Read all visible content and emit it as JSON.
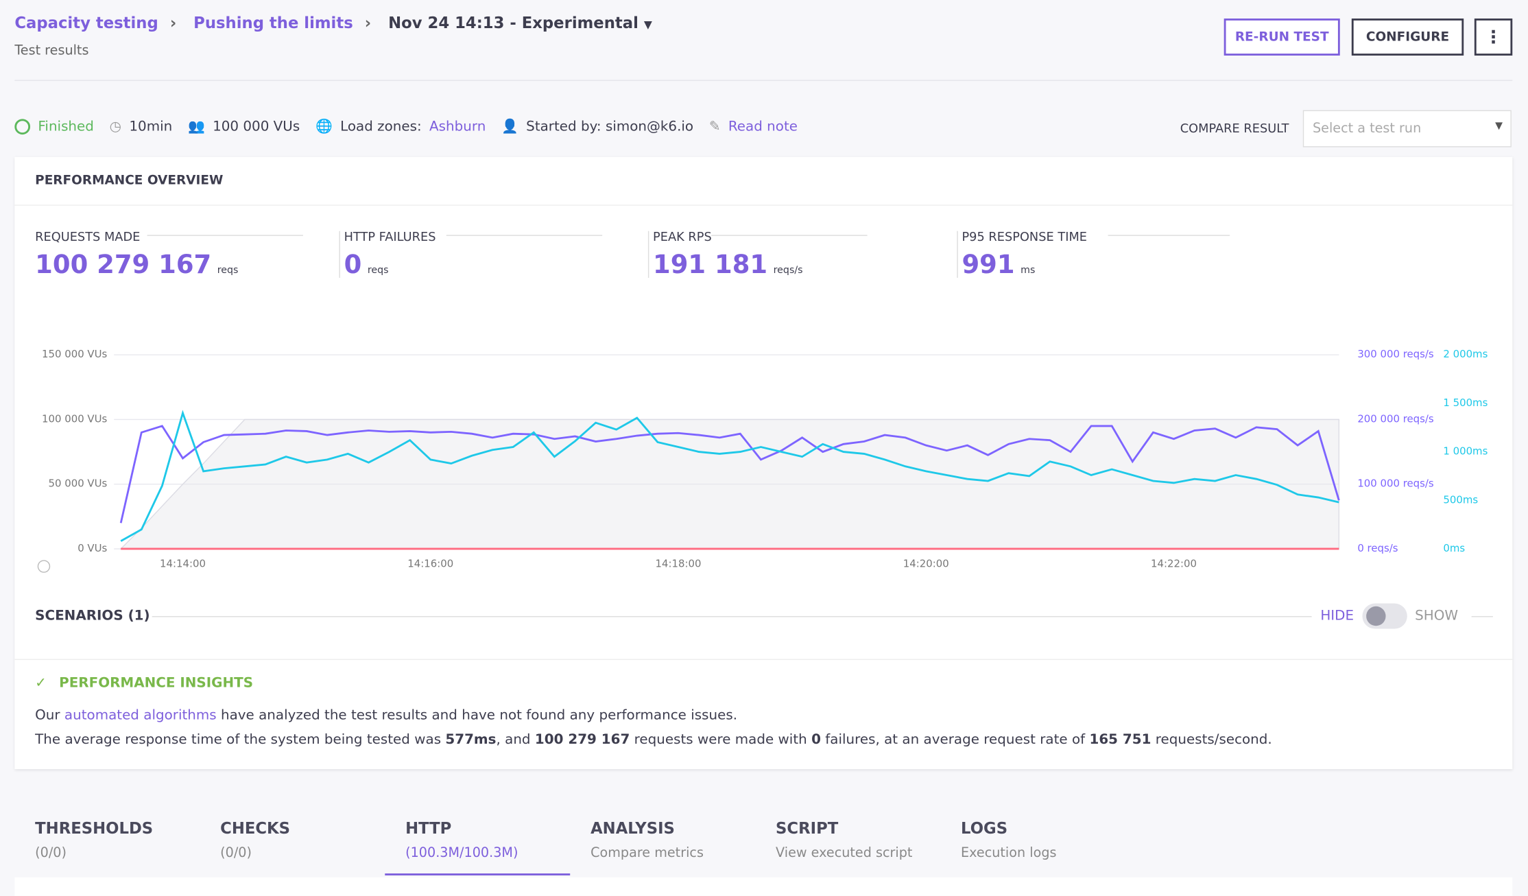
{
  "header": {
    "breadcrumb": [
      "Capacity testing",
      "Pushing the limits",
      "Nov 24 14:13 - Experimental"
    ],
    "subtitle": "Test results",
    "buttons": [
      "RE-RUN TEST",
      "CONFIGURE"
    ]
  },
  "status": {
    "state": "Finished",
    "duration": "10min",
    "vus": "100 000 VUs",
    "zones_label": "Load zones:",
    "zone": "Ashburn",
    "started": "Started by: simon@k6.io",
    "note": "Read note",
    "compare_label": "COMPARE RESULT",
    "compare_placeholder": "Select a test run"
  },
  "overview": {
    "title": "PERFORMANCE OVERVIEW",
    "stats": [
      {
        "label": "REQUESTS MADE",
        "value": "100 279 167",
        "unit": "reqs"
      },
      {
        "label": "HTTP FAILURES",
        "value": "0",
        "unit": "reqs"
      },
      {
        "label": "PEAK RPS",
        "value": "191 181",
        "unit": "reqs/s"
      },
      {
        "label": "P95 RESPONSE TIME",
        "value": "991",
        "unit": "ms"
      }
    ]
  },
  "chart_data": {
    "type": "line",
    "x": [
      "14:13:30",
      "14:13:40",
      "14:13:50",
      "14:14:00",
      "14:14:10",
      "14:14:20",
      "14:14:30",
      "14:14:40",
      "14:14:50",
      "14:15:00",
      "14:15:10",
      "14:15:20",
      "14:15:30",
      "14:15:40",
      "14:15:50",
      "14:16:00",
      "14:16:10",
      "14:16:20",
      "14:16:30",
      "14:16:40",
      "14:16:50",
      "14:17:00",
      "14:17:10",
      "14:17:20",
      "14:17:30",
      "14:17:40",
      "14:17:50",
      "14:18:00",
      "14:18:10",
      "14:18:20",
      "14:18:30",
      "14:18:40",
      "14:18:50",
      "14:19:00",
      "14:19:10",
      "14:19:20",
      "14:19:30",
      "14:19:40",
      "14:19:50",
      "14:20:00",
      "14:20:10",
      "14:20:20",
      "14:20:30",
      "14:20:40",
      "14:20:50",
      "14:21:00",
      "14:21:10",
      "14:21:20",
      "14:21:30",
      "14:21:40",
      "14:21:50",
      "14:22:00",
      "14:22:10",
      "14:22:20",
      "14:22:30",
      "14:22:40",
      "14:22:50",
      "14:23:00",
      "14:23:10",
      "14:23:20"
    ],
    "xticks": [
      "14:14:00",
      "14:16:00",
      "14:18:00",
      "14:20:00",
      "14:22:00"
    ],
    "ylim": [
      0,
      150000
    ],
    "yticks": [
      {
        "value": 0,
        "label": "0 VUs"
      },
      {
        "value": 50000,
        "label": "50 000 VUs"
      },
      {
        "value": 100000,
        "label": "100 000 VUs"
      },
      {
        "value": 150000,
        "label": "150 000 VUs"
      }
    ],
    "y2lim": [
      0,
      300000
    ],
    "y2ticks": [
      {
        "value": 0,
        "label": "0 reqs/s"
      },
      {
        "value": 100000,
        "label": "100 000 reqs/s"
      },
      {
        "value": 200000,
        "label": "200 000 reqs/s"
      },
      {
        "value": 300000,
        "label": "300 000 reqs/s"
      }
    ],
    "y3lim": [
      0,
      2000
    ],
    "y3ticks": [
      {
        "value": 0,
        "label": "0ms"
      },
      {
        "value": 500,
        "label": "500ms"
      },
      {
        "value": 1000,
        "label": "1 000ms"
      },
      {
        "value": 1500,
        "label": "1 500ms"
      },
      {
        "value": 2000,
        "label": "2 000ms"
      }
    ],
    "grid": true,
    "series": [
      {
        "color": "#e6e6ec",
        "axis": "y",
        "area": true,
        "values": [
          0,
          16000,
          33000,
          50000,
          66000,
          83000,
          100000,
          100000,
          100000,
          100000,
          100000,
          100000,
          100000,
          100000,
          100000,
          100000,
          100000,
          100000,
          100000,
          100000,
          100000,
          100000,
          100000,
          100000,
          100000,
          100000,
          100000,
          100000,
          100000,
          100000,
          100000,
          100000,
          100000,
          100000,
          100000,
          100000,
          100000,
          100000,
          100000,
          100000,
          100000,
          100000,
          100000,
          100000,
          100000,
          100000,
          100000,
          100000,
          100000,
          100000,
          100000,
          100000,
          100000,
          100000,
          100000,
          100000,
          100000,
          100000,
          100000,
          100000
        ]
      },
      {
        "color": "#7d64ff",
        "axis": "y2",
        "values": [
          40000,
          180000,
          190000,
          140000,
          165000,
          176000,
          177000,
          178000,
          183000,
          182000,
          176000,
          180000,
          183000,
          181000,
          182000,
          180000,
          181000,
          178000,
          172000,
          178000,
          177000,
          170000,
          174000,
          166000,
          170000,
          175000,
          178000,
          179000,
          176000,
          172000,
          178000,
          138000,
          152000,
          172000,
          150000,
          162000,
          166000,
          176000,
          172000,
          160000,
          152000,
          160000,
          145000,
          162000,
          170000,
          168000,
          150000,
          190000,
          190000,
          135000,
          180000,
          170000,
          183000,
          186000,
          172000,
          188000,
          185000,
          160000,
          182000,
          75000
        ]
      },
      {
        "color": "#1ec8e8",
        "axis": "y3",
        "values": [
          80,
          200,
          650,
          1400,
          800,
          830,
          850,
          870,
          950,
          890,
          920,
          980,
          890,
          1000,
          1120,
          920,
          880,
          960,
          1020,
          1050,
          1200,
          950,
          1110,
          1300,
          1230,
          1350,
          1100,
          1050,
          1000,
          980,
          1000,
          1050,
          1000,
          950,
          1080,
          1000,
          980,
          920,
          850,
          800,
          760,
          720,
          700,
          780,
          750,
          900,
          850,
          760,
          820,
          760,
          700,
          680,
          720,
          700,
          760,
          720,
          660,
          560,
          530,
          480
        ]
      },
      {
        "color": "#ff6b81",
        "axis": "y2",
        "values": [
          0,
          0,
          0,
          0,
          0,
          0,
          0,
          0,
          0,
          0,
          0,
          0,
          0,
          0,
          0,
          0,
          0,
          0,
          0,
          0,
          0,
          0,
          0,
          0,
          0,
          0,
          0,
          0,
          0,
          0,
          0,
          0,
          0,
          0,
          0,
          0,
          0,
          0,
          0,
          0,
          0,
          0,
          0,
          0,
          0,
          0,
          0,
          0,
          0,
          0,
          0,
          0,
          0,
          0,
          0,
          0,
          0,
          0,
          0,
          0
        ]
      }
    ]
  },
  "scenarios": {
    "title": "SCENARIOS (1)",
    "hide": "HIDE",
    "show": "SHOW"
  },
  "insights": {
    "title": "PERFORMANCE INSIGHTS",
    "line1": [
      "Our ",
      "automated algorithms",
      " have analyzed the test results and have not found any performance issues."
    ],
    "line2": [
      "The average response time of the system being tested was ",
      "577ms",
      ", and ",
      "100 279 167",
      " requests were made with ",
      "0",
      " failures, at an average request rate of ",
      "165 751",
      " requests/second."
    ]
  },
  "tabs": [
    {
      "title": "THRESHOLDS",
      "sub": "(0/0)"
    },
    {
      "title": "CHECKS",
      "sub": "(0/0)"
    },
    {
      "title": "HTTP",
      "sub": "(100.3M/100.3M)"
    },
    {
      "title": "ANALYSIS",
      "sub": "Compare metrics"
    },
    {
      "title": "SCRIPT",
      "sub": "View executed script"
    },
    {
      "title": "LOGS",
      "sub": "Execution logs"
    }
  ]
}
